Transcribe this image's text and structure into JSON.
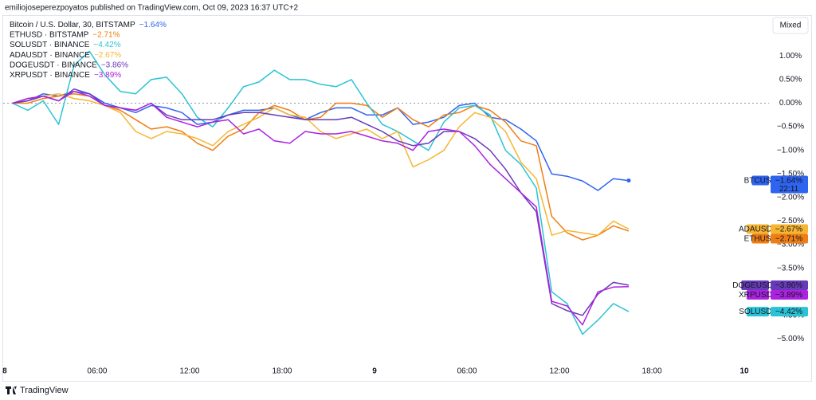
{
  "header": "emiliojoseperezpoyatos published on TradingView.com, Oct 09, 2023 16:37 UTC+2",
  "scale_mode_button": "Mixed",
  "footer_logo": "TradingView",
  "chart_data": {
    "type": "line",
    "xlim": [
      -0.1,
      49.6
    ],
    "ylim": [
      -5.5,
      1.85
    ],
    "xticks": [
      {
        "value": 0,
        "label": "8"
      },
      {
        "value": 6,
        "label": "06:00"
      },
      {
        "value": 12,
        "label": "12:00"
      },
      {
        "value": 18,
        "label": "18:00"
      },
      {
        "value": 24,
        "label": "9"
      },
      {
        "value": 30,
        "label": "06:00"
      },
      {
        "value": 36,
        "label": "12:00"
      },
      {
        "value": 42,
        "label": "18:00"
      },
      {
        "value": 48,
        "label": "10"
      }
    ],
    "yticks": [
      {
        "value": 1,
        "label": "1.00%"
      },
      {
        "value": 0.5,
        "label": "0.50%"
      },
      {
        "value": 0,
        "label": "0.00%"
      },
      {
        "value": -0.5,
        "label": "−0.50%"
      },
      {
        "value": -1,
        "label": "−1.00%"
      },
      {
        "value": -1.5,
        "label": "−1.50%"
      },
      {
        "value": -2,
        "label": "−2.00%"
      },
      {
        "value": -2.5,
        "label": "−2.50%"
      },
      {
        "value": -3,
        "label": "−3.00%"
      },
      {
        "value": -3.5,
        "label": "−3.50%"
      },
      {
        "value": -4,
        "label": "−4.00%"
      },
      {
        "value": -4.5,
        "label": "−4.50%"
      },
      {
        "value": -5,
        "label": "−5.00%"
      }
    ],
    "x": [
      0.5,
      1.5,
      2.5,
      3.5,
      4.5,
      5.5,
      6.5,
      7.5,
      8.5,
      9.5,
      10.5,
      11.5,
      12.5,
      13.5,
      14.5,
      15.5,
      16.5,
      17.5,
      18.5,
      19.5,
      20.5,
      21.5,
      22.5,
      23.5,
      24.5,
      25.5,
      26.5,
      27.5,
      28.5,
      29.5,
      30.5,
      31.5,
      32.5,
      33.5,
      34.5,
      35.5,
      36.5,
      37.5,
      38.5,
      39.5,
      40.5
    ],
    "series": [
      {
        "name": "Bitcoin / U.S. Dollar, 30, BITSTAMP",
        "tag": "BTCUSD",
        "last_label": "−1.64%",
        "countdown": "22:11",
        "color": "#2f64f0",
        "text_color": "#ffffff",
        "values": [
          0,
          0.05,
          0.2,
          0.15,
          0.25,
          0.2,
          0,
          -0.1,
          -0.2,
          -0.05,
          -0.1,
          -0.2,
          -0.45,
          -0.4,
          -0.25,
          -0.15,
          -0.15,
          -0.1,
          -0.25,
          -0.35,
          -0.2,
          -0.1,
          -0.1,
          -0.25,
          -0.25,
          -0.1,
          -0.45,
          -0.4,
          -0.3,
          -0.05,
          0,
          -0.3,
          -0.35,
          -0.55,
          -0.8,
          -1.5,
          -1.55,
          -1.65,
          -1.85,
          -1.6,
          -1.64
        ]
      },
      {
        "name": "ETHUSD · BITSTAMP",
        "tag": "ETHUSD",
        "last_label": "−2.71%",
        "color": "#ef7d14",
        "text_color": "#ffffff",
        "values": [
          0,
          0,
          0.1,
          0.15,
          0.2,
          0.15,
          -0.05,
          -0.15,
          -0.35,
          -0.55,
          -0.5,
          -0.6,
          -0.85,
          -1,
          -0.7,
          -0.55,
          -0.2,
          -0.05,
          -0.15,
          -0.35,
          -0.3,
          0,
          0,
          -0.05,
          -0.3,
          -0.1,
          -0.35,
          -0.5,
          -0.25,
          -0.2,
          -0.05,
          -0.15,
          -0.4,
          -0.8,
          -0.9,
          -2.4,
          -2.75,
          -2.9,
          -2.8,
          -2.6,
          -2.71
        ]
      },
      {
        "name": "SOLUSDT · BINANCE",
        "tag": "SOLUSDT",
        "last_label": "−4.42%",
        "color": "#2ac3d6",
        "text_color": "#131722",
        "values": [
          0,
          -0.15,
          0.05,
          -0.45,
          0.8,
          1.1,
          0.6,
          0.25,
          0.2,
          0.5,
          0.55,
          0.2,
          -0.3,
          -0.5,
          -0.1,
          0.35,
          0.45,
          0.7,
          0.5,
          0.5,
          0.4,
          0.35,
          0.5,
          0,
          -0.45,
          -0.6,
          -0.8,
          -1,
          -0.4,
          -0.1,
          -0.05,
          -0.25,
          -1,
          -1.3,
          -1.8,
          -4,
          -4.25,
          -4.9,
          -4.6,
          -4.25,
          -4.42
        ]
      },
      {
        "name": "ADAUSDT · BINANCE",
        "tag": "ADAUSDT",
        "last_label": "−2.67%",
        "color": "#f6b632",
        "text_color": "#131722",
        "values": [
          0,
          0.1,
          0.15,
          0.2,
          0.1,
          0.05,
          -0.05,
          -0.2,
          -0.6,
          -0.75,
          -0.6,
          -0.65,
          -0.75,
          -0.9,
          -0.6,
          -0.45,
          -0.3,
          -0.1,
          -0.25,
          -0.3,
          -0.6,
          -0.75,
          -0.65,
          -0.55,
          -0.75,
          -0.6,
          -1.35,
          -1.2,
          -1,
          -0.5,
          -0.2,
          -0.3,
          -0.6,
          -1.25,
          -1.6,
          -2.8,
          -2.7,
          -2.75,
          -2.8,
          -2.5,
          -2.67
        ]
      },
      {
        "name": "DOGEUSDT · BINANCE",
        "tag": "DOGEUSDT",
        "last_label": "−3.86%",
        "color": "#673ab7",
        "text_color": "#ffffff",
        "values": [
          0,
          0.05,
          0.15,
          0.05,
          0.3,
          0.2,
          -0.05,
          -0.1,
          -0.15,
          0,
          -0.25,
          -0.35,
          -0.35,
          -0.35,
          -0.25,
          -0.2,
          -0.2,
          -0.25,
          -0.3,
          -0.35,
          -0.35,
          -0.35,
          -0.3,
          -0.45,
          -0.6,
          -0.8,
          -0.9,
          -0.85,
          -0.6,
          -0.6,
          -0.75,
          -1,
          -1.4,
          -1.9,
          -2.3,
          -4.25,
          -4.4,
          -4.5,
          -4.05,
          -3.8,
          -3.86
        ]
      },
      {
        "name": "XRPUSDT · BINANCE",
        "tag": "XRPUSDT",
        "last_label": "−3.89%",
        "color": "#ac22e0",
        "text_color": "#ffffff",
        "values": [
          0,
          0.1,
          0.15,
          0.05,
          0.25,
          0.15,
          -0.05,
          -0.1,
          -0.15,
          0,
          -0.3,
          -0.4,
          -0.5,
          -0.4,
          -0.35,
          -0.65,
          -0.55,
          -0.8,
          -0.85,
          -0.6,
          -0.65,
          -0.65,
          -0.6,
          -0.7,
          -0.8,
          -0.85,
          -1,
          -0.6,
          -0.55,
          -0.6,
          -0.9,
          -1.3,
          -1.6,
          -1.9,
          -2.2,
          -4.2,
          -4.3,
          -4.7,
          -4,
          -3.9,
          -3.89
        ]
      }
    ]
  }
}
